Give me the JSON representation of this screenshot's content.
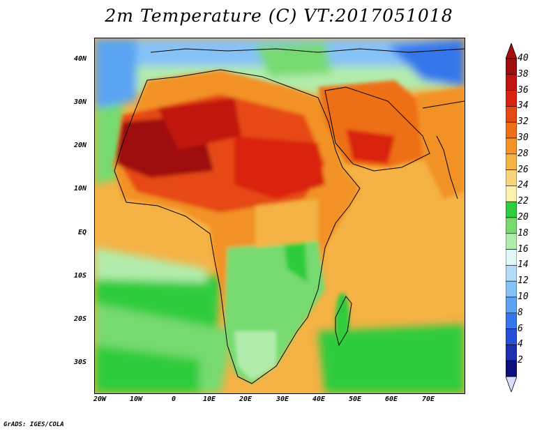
{
  "title": "2m Temperature (C) VT:2017051018",
  "footer": "GrADS: IGES/COLA",
  "lat_ticks": [
    "40N",
    "30N",
    "20N",
    "10N",
    "EQ",
    "10S",
    "20S",
    "30S"
  ],
  "lon_ticks": [
    "20W",
    "10W",
    "0",
    "10E",
    "20E",
    "30E",
    "40E",
    "50E",
    "60E",
    "70E"
  ],
  "colorbar": {
    "labels": [
      "40",
      "38",
      "36",
      "34",
      "32",
      "30",
      "28",
      "26",
      "24",
      "22",
      "20",
      "18",
      "16",
      "14",
      "12",
      "10",
      "8",
      "6",
      "4",
      "2"
    ],
    "colors": [
      "#9e0d0d",
      "#c0140e",
      "#d9230f",
      "#e64a12",
      "#ee6f19",
      "#f29227",
      "#f5b245",
      "#f8d57c",
      "#fbf0ad",
      "#2fcc3d",
      "#76da6f",
      "#b2ecac",
      "#e0f6f7",
      "#b3dcf8",
      "#86c2f6",
      "#5aa4f3",
      "#3577eb",
      "#244fd6",
      "#1b2fb0",
      "#0b0f7a"
    ],
    "top_arrow_color": "#a50f0f",
    "bottom_arrow_color": "#dcdcff"
  }
}
